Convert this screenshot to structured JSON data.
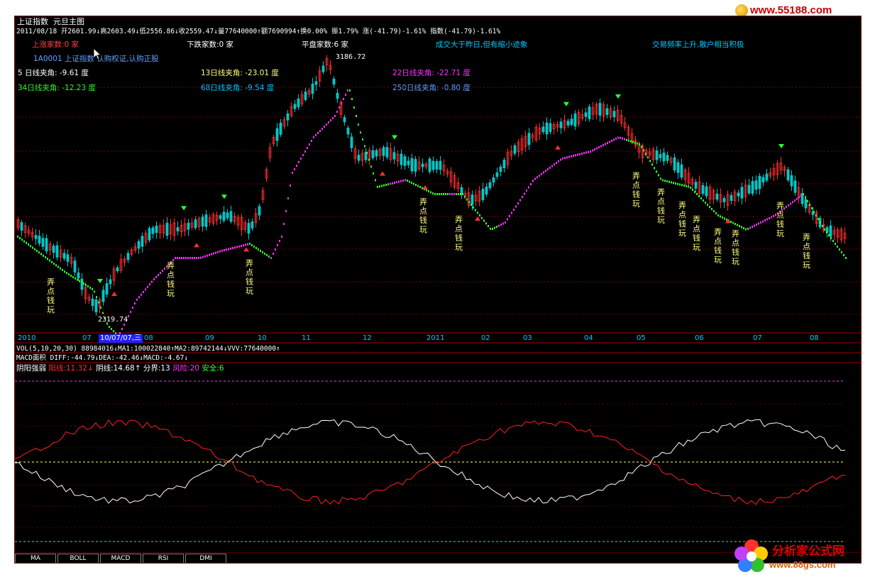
{
  "watermark_top": "www.55188.com",
  "watermark_bottom": {
    "title": "分析家公式网",
    "url": "www.88gs.com"
  },
  "header": {
    "title": "上证指数",
    "subtitle": "元旦主图",
    "info_line": "2011/08/18 开2601.99↓高2603.49↓低2556.86↓收2559.47↓量77640000↑额7690994↑换0.00% 振1.79% 涨(-41.79)-1.61% 指数(-41.79)-1.61%",
    "up_count": "上涨家数:0 家",
    "down_count": "下跌家数:0 家",
    "flat_count": "平盘家数:6 家",
    "msg_volume": "成交大于昨日,但有缩小迹象",
    "msg_freq": "交易频率上升,散户相当积极",
    "code_line": "1A0001 上证指数 认购权证,认购正股",
    "angle_5": "5 日线夹角: -9.61 度",
    "angle_13": "13日线夹角: -23.01 度",
    "angle_22": "22日线夹角: -22.71 度",
    "angle_34": "34日线夹角: -12.23 度",
    "angle_68": "68日线夹角: -9.54 度",
    "angle_250": "250日线夹角: -0.80 度"
  },
  "price_labels": {
    "high": "3186.72",
    "low": "2319.74"
  },
  "signal_text": "弄点钱玩",
  "x_axis": [
    "2010",
    "07",
    "10/07/07,三",
    "08",
    "09",
    "10",
    "11",
    "12",
    "2011",
    "02",
    "03",
    "04",
    "05",
    "06",
    "07",
    "08"
  ],
  "vol_line": "VOL(5,10,20,30) 88984016↓MA1:100022840↑MA2:89742144↓VVV:77640000↑",
  "macd_line": "MACD面积 DIFF:-44.79↓DEA:-42.46↓MACD:-4.67↓",
  "yinyang": {
    "name": "阴阳强弱",
    "yang": "阳线:11.32↓",
    "yin": "阴线:14.68↑",
    "fenjie": "分界:13",
    "risk": "风险:20",
    "safe": "安全:6"
  },
  "tabs": [
    "MA",
    "BOLL",
    "MACD",
    "RSI",
    "DMI"
  ],
  "colors": {
    "up": "#ff3030",
    "down": "#00c8c8",
    "ma_up": "#ff30ff",
    "ma_down": "#30ff30",
    "label": "#ffff80"
  }
}
